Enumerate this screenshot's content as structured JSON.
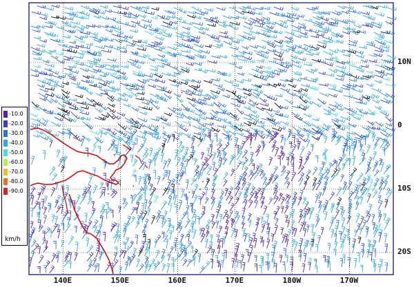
{
  "map": {
    "lat_labels": [
      {
        "text": "10N",
        "lat": 10
      },
      {
        "text": "0",
        "lat": 0
      },
      {
        "text": "10S",
        "lat": -10
      },
      {
        "text": "20S",
        "lat": -20
      }
    ],
    "lon_labels": [
      {
        "text": "140E",
        "lon": 140
      },
      {
        "text": "150E",
        "lon": 150
      },
      {
        "text": "160E",
        "lon": 160
      },
      {
        "text": "170E",
        "lon": 170
      },
      {
        "text": "180W",
        "lon": 180
      },
      {
        "text": "170W",
        "lon": 190
      }
    ]
  },
  "legend": {
    "unit": "km/h",
    "items": [
      {
        "label": "-10.0",
        "color": "#5a1fa8"
      },
      {
        "label": "-20.0",
        "color": "#3a3ad8"
      },
      {
        "label": "-30.0",
        "color": "#2a70e8"
      },
      {
        "label": "-40.0",
        "color": "#2aa8f0"
      },
      {
        "label": "-50.0",
        "color": "#44e0e0"
      },
      {
        "label": "-60.0",
        "color": "#b8f050"
      },
      {
        "label": "-70.0",
        "color": "#f0c020"
      },
      {
        "label": "-80.0",
        "color": "#f07020"
      },
      {
        "label": "-90.0",
        "color": "#e02020"
      }
    ]
  },
  "colors": {
    "frame": "#3030a0",
    "coastline": "#e00000",
    "grid": "#000000",
    "wind_black": "#111111"
  }
}
